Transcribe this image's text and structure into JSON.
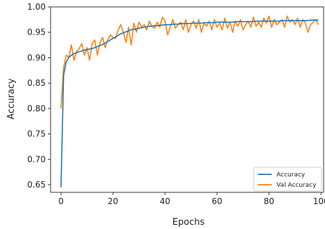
{
  "chart_data": {
    "type": "line",
    "title": "",
    "xlabel": "Epochs",
    "ylabel": "Accuracy",
    "xlim": [
      -4,
      101
    ],
    "ylim": [
      0.635,
      1.0
    ],
    "x_ticks": [
      0,
      20,
      40,
      60,
      80,
      100
    ],
    "y_ticks": [
      0.65,
      0.7,
      0.75,
      0.8,
      0.85,
      0.9,
      0.95,
      1.0
    ],
    "x_tick_labels": [
      "0",
      "20",
      "40",
      "60",
      "80",
      "100"
    ],
    "y_tick_labels": [
      "0.65",
      "0.70",
      "0.75",
      "0.80",
      "0.85",
      "0.90",
      "0.95",
      "1.00"
    ],
    "grid": false,
    "legend_position": "bottom-right",
    "series": [
      {
        "name": "Accuracy",
        "color": "#1f77b4",
        "x": [
          0,
          1,
          2,
          3,
          4,
          5,
          6,
          7,
          8,
          9,
          10,
          11,
          12,
          13,
          14,
          15,
          16,
          17,
          18,
          19,
          20,
          21,
          22,
          23,
          24,
          25,
          26,
          27,
          28,
          29,
          30,
          31,
          32,
          33,
          34,
          35,
          36,
          37,
          38,
          39,
          40,
          41,
          42,
          43,
          44,
          45,
          46,
          47,
          48,
          49,
          50,
          51,
          52,
          53,
          54,
          55,
          56,
          57,
          58,
          59,
          60,
          61,
          62,
          63,
          64,
          65,
          66,
          67,
          68,
          69,
          70,
          71,
          72,
          73,
          74,
          75,
          76,
          77,
          78,
          79,
          80,
          81,
          82,
          83,
          84,
          85,
          86,
          87,
          88,
          89,
          90,
          91,
          92,
          93,
          94,
          95,
          96,
          97,
          98,
          99
        ],
        "values": [
          0.645,
          0.865,
          0.892,
          0.9,
          0.905,
          0.908,
          0.91,
          0.912,
          0.913,
          0.915,
          0.916,
          0.917,
          0.918,
          0.92,
          0.922,
          0.924,
          0.926,
          0.929,
          0.932,
          0.935,
          0.938,
          0.941,
          0.944,
          0.947,
          0.949,
          0.951,
          0.953,
          0.955,
          0.956,
          0.957,
          0.958,
          0.959,
          0.96,
          0.961,
          0.962,
          0.962,
          0.963,
          0.963,
          0.964,
          0.964,
          0.965,
          0.965,
          0.965,
          0.966,
          0.966,
          0.966,
          0.967,
          0.967,
          0.967,
          0.967,
          0.968,
          0.968,
          0.968,
          0.968,
          0.968,
          0.969,
          0.969,
          0.969,
          0.969,
          0.969,
          0.97,
          0.97,
          0.97,
          0.97,
          0.97,
          0.97,
          0.97,
          0.971,
          0.971,
          0.971,
          0.971,
          0.971,
          0.971,
          0.971,
          0.971,
          0.972,
          0.972,
          0.972,
          0.972,
          0.972,
          0.972,
          0.972,
          0.972,
          0.972,
          0.972,
          0.973,
          0.973,
          0.973,
          0.973,
          0.973,
          0.973,
          0.973,
          0.973,
          0.973,
          0.973,
          0.973,
          0.974,
          0.974,
          0.974,
          0.974
        ]
      },
      {
        "name": "Val  Accuracy",
        "color": "#ff7f0e",
        "x": [
          0,
          1,
          2,
          3,
          4,
          5,
          6,
          7,
          8,
          9,
          10,
          11,
          12,
          13,
          14,
          15,
          16,
          17,
          18,
          19,
          20,
          21,
          22,
          23,
          24,
          25,
          26,
          27,
          28,
          29,
          30,
          31,
          32,
          33,
          34,
          35,
          36,
          37,
          38,
          39,
          40,
          41,
          42,
          43,
          44,
          45,
          46,
          47,
          48,
          49,
          50,
          51,
          52,
          53,
          54,
          55,
          56,
          57,
          58,
          59,
          60,
          61,
          62,
          63,
          64,
          65,
          66,
          67,
          68,
          69,
          70,
          71,
          72,
          73,
          74,
          75,
          76,
          77,
          78,
          79,
          80,
          81,
          82,
          83,
          84,
          85,
          86,
          87,
          88,
          89,
          90,
          91,
          92,
          93,
          94,
          95,
          96,
          97,
          98,
          99
        ],
        "values": [
          0.8,
          0.88,
          0.905,
          0.9,
          0.925,
          0.895,
          0.912,
          0.918,
          0.928,
          0.905,
          0.92,
          0.895,
          0.928,
          0.935,
          0.905,
          0.93,
          0.94,
          0.92,
          0.935,
          0.945,
          0.94,
          0.938,
          0.955,
          0.965,
          0.95,
          0.93,
          0.96,
          0.925,
          0.968,
          0.95,
          0.97,
          0.96,
          0.965,
          0.955,
          0.972,
          0.962,
          0.958,
          0.97,
          0.96,
          0.98,
          0.972,
          0.945,
          0.96,
          0.975,
          0.958,
          0.965,
          0.97,
          0.955,
          0.975,
          0.95,
          0.965,
          0.972,
          0.958,
          0.975,
          0.95,
          0.968,
          0.962,
          0.972,
          0.955,
          0.975,
          0.96,
          0.968,
          0.955,
          0.978,
          0.958,
          0.97,
          0.95,
          0.972,
          0.962,
          0.975,
          0.955,
          0.965,
          0.972,
          0.96,
          0.98,
          0.962,
          0.97,
          0.96,
          0.978,
          0.968,
          0.982,
          0.96,
          0.975,
          0.965,
          0.97,
          0.975,
          0.96,
          0.982,
          0.97,
          0.975,
          0.965,
          0.978,
          0.96,
          0.975,
          0.968,
          0.95,
          0.965,
          0.97,
          0.975,
          0.965
        ]
      }
    ]
  }
}
